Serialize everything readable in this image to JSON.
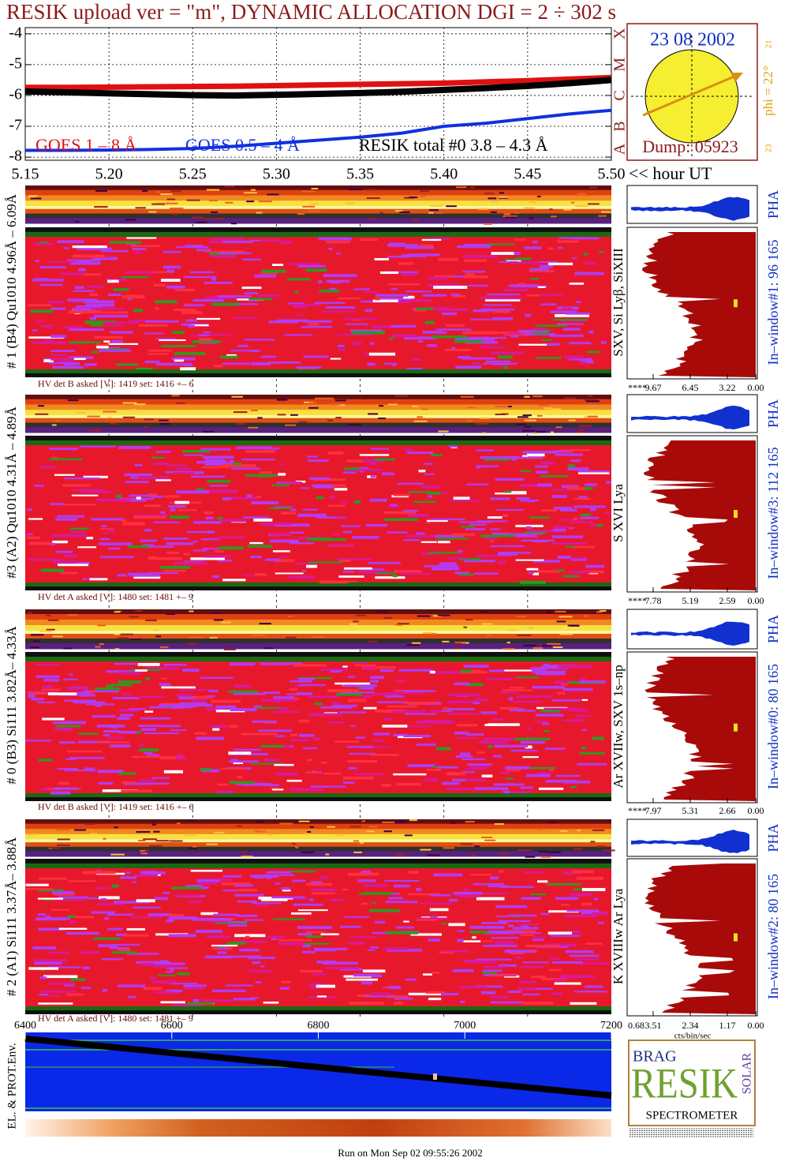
{
  "chart_data": {
    "type": "line",
    "title": "RESIK upload ver = \"m\", DYNAMIC ALLOCATION  DGI =   2 ÷ 302 s",
    "x_label": "<< hour UT",
    "x": [
      5.15,
      5.175,
      5.2,
      5.225,
      5.25,
      5.275,
      5.3,
      5.325,
      5.35,
      5.375,
      5.4,
      5.425,
      5.45,
      5.475,
      5.5
    ],
    "series": [
      {
        "name": "GOES 1 – 8 Å",
        "color": "#e01010",
        "values": [
          -5.74,
          -5.74,
          -5.73,
          -5.72,
          -5.71,
          -5.7,
          -5.68,
          -5.66,
          -5.64,
          -5.62,
          -5.6,
          -5.56,
          -5.52,
          -5.47,
          -5.42
        ]
      },
      {
        "name": "GOES 0.5 – 4 Å",
        "color": "#1030e0",
        "values": [
          -7.78,
          -7.78,
          -7.77,
          -7.75,
          -7.72,
          -7.65,
          -7.55,
          -7.45,
          -7.35,
          -7.22,
          -7.0,
          -6.9,
          -6.75,
          -6.6,
          -6.48
        ]
      },
      {
        "name": "RESIK total #0  3.8 – 4.3 Å",
        "color": "#000000",
        "values": [
          -5.87,
          -5.9,
          -5.93,
          -5.96,
          -5.99,
          -6.0,
          -5.98,
          -5.95,
          -5.92,
          -5.88,
          -5.82,
          -5.76,
          -5.69,
          -5.6,
          -5.5
        ]
      }
    ],
    "xlim": [
      5.15,
      5.5
    ],
    "xticks": [
      5.15,
      {
        "value": 5.2,
        "label": "5.20"
      },
      5.25,
      {
        "value": 5.3,
        "label": "5.30"
      },
      5.35,
      {
        "value": 5.4,
        "label": "5.40"
      },
      5.45,
      {
        "value": 5.5,
        "label": "5.50"
      }
    ],
    "ylim": [
      -8.1,
      -3.8
    ],
    "yticks": [
      -4,
      -5,
      -6,
      -7,
      -8
    ],
    "y2ticks": [
      {
        "value": -4,
        "label": "X"
      },
      {
        "value": -5,
        "label": "M"
      },
      {
        "value": -6,
        "label": "C"
      },
      {
        "value": -7,
        "label": "B"
      },
      {
        "value": -8,
        "label": "A"
      }
    ],
    "grid": true
  },
  "sun": {
    "date": "23 08 2002",
    "dump": "Dump: 05923",
    "phi": "phi = 22°",
    "scale_top": 21,
    "scale_bottom": 23
  },
  "panels": [
    {
      "label": "# 1 (B4) Qu1010 4.96Å – 6.09Å",
      "lines": "SXV, Si Lyβ, SiXIII",
      "window": "In–window#1:   96 165",
      "pha": "PHA",
      "hv": "HV det B asked [V]:  1419 set:  1416 +–   6",
      "hist_overflow": "****",
      "hist_ticks": [
        9.67,
        6.45,
        3.22,
        {
          "value": 0,
          "label": "0.00"
        }
      ]
    },
    {
      "label": "#3 (A2) Qu1010  4.31Å – 4.89Å",
      "lines": "S XVI Lya",
      "window": "In–window#3:  112 165",
      "pha": "PHA",
      "hv": "HV det A asked [V]:  1480 set:  1481 +–   9",
      "hist_overflow": "****",
      "hist_ticks": [
        7.78,
        5.19,
        2.59,
        {
          "value": 0,
          "label": "0.00"
        }
      ]
    },
    {
      "label": "# 0 (B3) Si111  3.82Å– 4.33Å",
      "lines": "Ar XVIIw, SXV 1s–np",
      "window": "In–window#0:   80 165",
      "pha": "PHA",
      "hv": "HV det B asked [V]:  1419 set:  1416 +–   6",
      "hist_overflow": "****",
      "hist_ticks": [
        7.97,
        5.31,
        2.66,
        {
          "value": 0,
          "label": "0.00"
        }
      ]
    },
    {
      "label": "# 2 (A1) Si111  3.37Å– 3.88Å",
      "lines": "K XVIIIw  Ar Lya",
      "window": "In–window#2:   80 165",
      "pha": "PHA",
      "hv": "HV det A asked [V]:  1480 set:  1481 +–   9",
      "hist_overflow": "0.68",
      "hist_ticks": [
        3.51,
        2.34,
        1.17,
        {
          "value": 0,
          "label": "0.00"
        }
      ]
    }
  ],
  "hist_unit": "cts/bin/sec",
  "env_panel": {
    "label": "EL. & PROT.Env.",
    "xlim": [
      6400,
      7200
    ],
    "xticks": [
      6400,
      6600,
      6800,
      7000,
      7200
    ]
  },
  "logo": {
    "top": "BRAG",
    "main": "RESIK",
    "side": "SOLAR",
    "bottom": "SPECTROMETER"
  },
  "footer": "Run on Mon Sep 02 09:55:26 2002"
}
